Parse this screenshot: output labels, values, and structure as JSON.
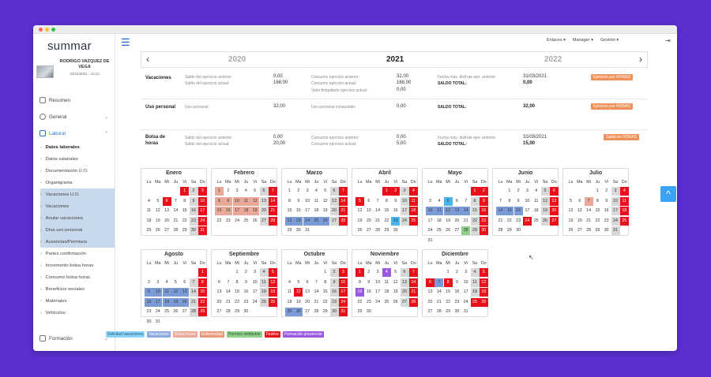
{
  "app": {
    "logo": "summar",
    "user_name": "RODRIGO VAZQUEZ DE VEGA",
    "user_date": "23/11/2021 - 11:21"
  },
  "topbar": {
    "links": "Enlaces ▾",
    "manager": "Manager ▾",
    "gestion": "Gestión ▾"
  },
  "nav": {
    "resumen": "Resumen",
    "general": "General",
    "laboral": "Laboral",
    "formacion": "Formación",
    "sub": [
      "Datos laborales",
      "Datos salariales",
      "Documentación U.O.",
      "Organigrama",
      "Vacaciones U.O.",
      "Vacaciones",
      "Anular vacaciones",
      "Días uso personal",
      "Ausencias/Permisos",
      "Partes confirmación",
      "Incremento bolsa horas",
      "Consumo bolsa horas",
      "Beneficios sociales",
      "Materiales",
      "Vehículos"
    ]
  },
  "years": {
    "prev": "2020",
    "current": "2021",
    "next": "2022"
  },
  "vacaciones": {
    "title": "Vacaciones",
    "l1": "Saldo del ejercicio anterior:",
    "v1": "0,00",
    "l2": "Saldo del ejercicio actual:",
    "v2": "168,00",
    "l3": "Consumo ejercicio anterior:",
    "v3": "32,00",
    "l4": "Consumo ejercicio actual:",
    "v4": "168,00",
    "l5": "Valor finiquitado ejercicio actual:",
    "v5": "0,00",
    "l6": "Fecha máx. disfrute ejer. anterior:",
    "v6": "31/03/2021",
    "l7": "SALDO TOTAL:",
    "v7": "0,00",
    "badge": "Ejercicio por HORAS"
  },
  "uso": {
    "title": "Uso personal",
    "l1": "Uso personal:",
    "v1": "32,00",
    "l2": "Uso personal consumido:",
    "v2": "0,00",
    "l3": "SALDO TOTAL:",
    "v3": "32,00",
    "badge": "Ejercicio por HORAS"
  },
  "bolsa": {
    "title": "Bolsa de horas",
    "l1": "Saldo del ejercicio anterior:",
    "v1": "0,00",
    "l2": "Saldo del ejercicio actual:",
    "v2": "20,00",
    "l3": "Consumo ejercicio anterior:",
    "v3": "0,00",
    "l4": "Consumo ejercicio actual:",
    "v4": "5,00",
    "l5": "Fecha máx. disfrute ejer. anterior:",
    "v5": "31/03/2021",
    "l6": "SALDO TOTAL:",
    "v6": "15,00",
    "badge": "Saldo en HORAS"
  },
  "weekdays": [
    "Lu",
    "Ma",
    "Mi",
    "Ju",
    "Vi",
    "Sa",
    "Do"
  ],
  "colors": {
    "red": "#e8101a",
    "blue": "#7b9bd6",
    "salmon": "#eaa898",
    "green": "#8fcf8a",
    "light": "#4ab5ea",
    "purple": "#9a5ae0",
    "gray": "#d8d8d8"
  },
  "months": [
    {
      "name": "Enero",
      "start": 4,
      "days": 31,
      "marks": {
        "1": "red",
        "2": "gray",
        "3": "red",
        "6": "red",
        "9": "gray",
        "10": "red",
        "16": "gray",
        "17": "red",
        "23": "gray",
        "24": "red",
        "30": "gray",
        "31": "red"
      }
    },
    {
      "name": "Febrero",
      "start": 0,
      "days": 28,
      "marks": {
        "1": "salmon",
        "6": "gray",
        "7": "red",
        "8": "salmon",
        "9": "salmon",
        "10": "salmon",
        "11": "salmon",
        "12": "salmon",
        "13": "gray",
        "14": "red",
        "15": "salmon",
        "16": "salmon",
        "17": "salmon",
        "18": "salmon",
        "19": "salmon",
        "20": "gray",
        "21": "red",
        "27": "gray",
        "28": "red"
      }
    },
    {
      "name": "Marzo",
      "start": 0,
      "days": 31,
      "marks": {
        "6": "gray",
        "7": "red",
        "13": "gray",
        "14": "red",
        "20": "gray",
        "21": "red",
        "22": "blue",
        "23": "blue",
        "24": "blue",
        "25": "blue",
        "26": "blue",
        "27": "gray",
        "28": "red"
      }
    },
    {
      "name": "Abril",
      "start": 3,
      "days": 30,
      "marks": {
        "1": "red",
        "2": "red",
        "3": "gray",
        "4": "red",
        "5": "red",
        "10": "gray",
        "11": "red",
        "17": "gray",
        "18": "red",
        "23": "light",
        "24": "gray",
        "25": "red"
      }
    },
    {
      "name": "Mayo",
      "start": 5,
      "days": 31,
      "marks": {
        "1": "red",
        "2": "red",
        "5": "light",
        "8": "gray",
        "9": "red",
        "10": "blue",
        "11": "blue",
        "12": "blue",
        "13": "blue",
        "14": "blue",
        "15": "gray",
        "16": "red",
        "22": "gray",
        "23": "red",
        "28": "green",
        "29": "gray",
        "30": "red"
      }
    },
    {
      "name": "Junio",
      "start": 1,
      "days": 30,
      "marks": {
        "5": "gray",
        "6": "red",
        "12": "gray",
        "13": "red",
        "14": "blue",
        "15": "blue",
        "16": "blue",
        "19": "gray",
        "20": "red",
        "24": "red",
        "26": "gray",
        "27": "red"
      }
    },
    {
      "name": "Julio",
      "start": 3,
      "days": 31,
      "marks": {
        "3": "gray",
        "4": "red",
        "7": "salmon",
        "10": "gray",
        "11": "red",
        "17": "gray",
        "18": "red",
        "24": "gray",
        "25": "red",
        "31": "gray"
      }
    },
    {
      "name": "Agosto",
      "start": 6,
      "days": 31,
      "marks": {
        "1": "red",
        "7": "gray",
        "8": "red",
        "9": "blue",
        "10": "blue",
        "11": "blue",
        "12": "blue",
        "13": "blue",
        "14": "gray",
        "15": "red",
        "16": "blue",
        "17": "blue",
        "18": "blue",
        "19": "blue",
        "20": "blue",
        "21": "gray",
        "22": "red",
        "28": "gray",
        "29": "red"
      }
    },
    {
      "name": "Septiembre",
      "start": 2,
      "days": 30,
      "marks": {
        "4": "gray",
        "5": "red",
        "11": "gray",
        "12": "red",
        "18": "gray",
        "19": "red",
        "25": "gray",
        "26": "red"
      }
    },
    {
      "name": "Octubre",
      "start": 4,
      "days": 31,
      "marks": {
        "2": "gray",
        "3": "red",
        "9": "gray",
        "10": "red",
        "12": "red",
        "16": "gray",
        "17": "red",
        "23": "gray",
        "24": "red",
        "25": "blue",
        "26": "blue",
        "30": "gray",
        "31": "red"
      }
    },
    {
      "name": "Noviembre",
      "start": 0,
      "days": 30,
      "marks": {
        "1": "red",
        "4": "purple",
        "6": "gray",
        "7": "red",
        "13": "gray",
        "14": "red",
        "15": "purple",
        "20": "gray",
        "21": "red",
        "27": "gray",
        "28": "red"
      }
    },
    {
      "name": "Diciembre",
      "start": 2,
      "days": 31,
      "marks": {
        "4": "gray",
        "5": "red",
        "6": "red",
        "7": "blue",
        "8": "red",
        "11": "gray",
        "12": "red",
        "18": "gray",
        "19": "red",
        "25": "red",
        "26": "red"
      }
    }
  ],
  "legend": [
    {
      "label": "Solicitud vacaciones",
      "bg": "#8fd3f3",
      "fg": "#1a5c8a"
    },
    {
      "label": "Vacaciones",
      "bg": "#8fa9e0",
      "fg": "#fff"
    },
    {
      "label": "Datos horas",
      "bg": "#eaa898",
      "fg": "#fff"
    },
    {
      "label": "Enfermedad",
      "bg": "#e89a7a",
      "fg": "#fff"
    },
    {
      "label": "Permiso retribuido",
      "bg": "#8fcf8a",
      "fg": "#2a5a2a"
    },
    {
      "label": "Festivo",
      "bg": "#e8101a",
      "fg": "#fff"
    },
    {
      "label": "Formación presencial",
      "bg": "#9a5ae0",
      "fg": "#fff"
    }
  ]
}
